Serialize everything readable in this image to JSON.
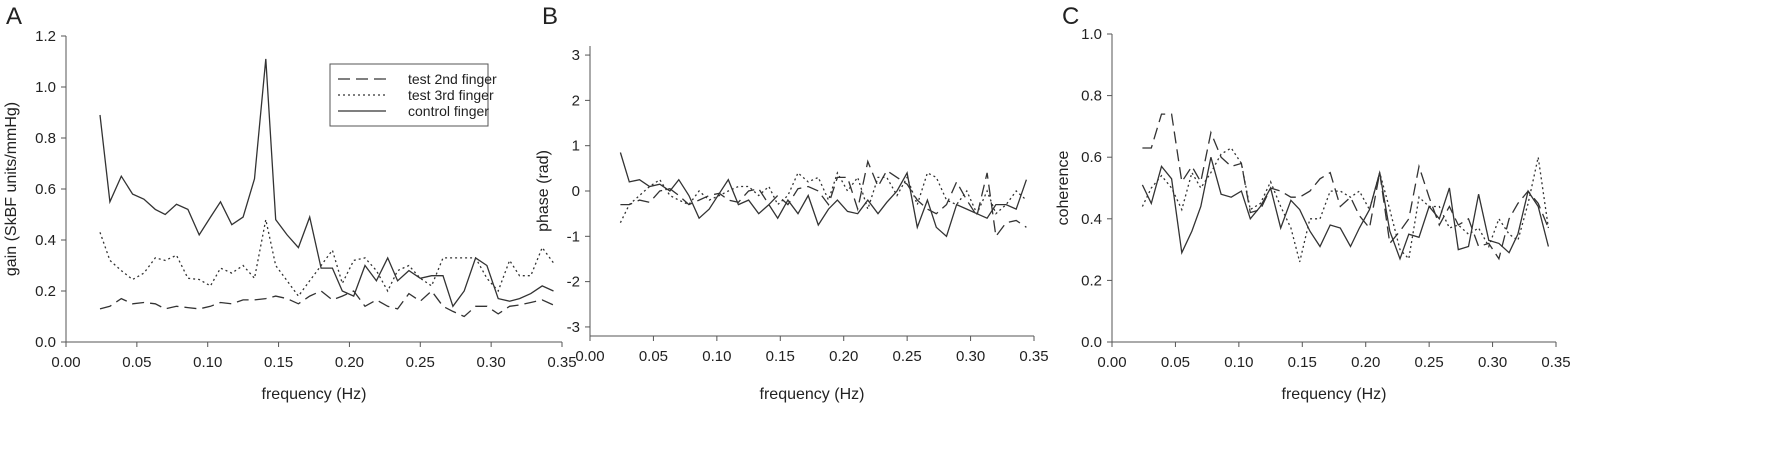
{
  "chart_data": [
    {
      "panel_label": "A",
      "type": "line",
      "xlabel": "frequency (Hz)",
      "ylabel": "gain (SkBF units/mmHg)",
      "xlim": [
        0.0,
        0.35
      ],
      "ylim": [
        0.0,
        1.2
      ],
      "xticks": [
        "0.00",
        "0.05",
        "0.10",
        "0.15",
        "0.20",
        "0.25",
        "0.30",
        "0.35"
      ],
      "yticks": [
        "0.0",
        "0.2",
        "0.4",
        "0.6",
        "0.8",
        "1.0",
        "1.2"
      ],
      "xtick_values": [
        0,
        0.05,
        0.1,
        0.15,
        0.2,
        0.25,
        0.3,
        0.35
      ],
      "ytick_values": [
        0,
        0.2,
        0.4,
        0.6,
        0.8,
        1.0,
        1.2
      ],
      "legend": "top-right",
      "x": [
        0.024,
        0.031,
        0.039,
        0.047,
        0.055,
        0.063,
        0.07,
        0.078,
        0.086,
        0.094,
        0.102,
        0.109,
        0.117,
        0.125,
        0.133,
        0.141,
        0.148,
        0.156,
        0.164,
        0.172,
        0.18,
        0.188,
        0.195,
        0.203,
        0.211,
        0.219,
        0.227,
        0.234,
        0.242,
        0.25,
        0.258,
        0.266,
        0.273,
        0.281,
        0.289,
        0.297,
        0.305,
        0.313,
        0.32,
        0.328,
        0.336,
        0.344
      ],
      "series": [
        {
          "name": "test 2nd finger",
          "dash": "dashed",
          "values": [
            0.13,
            0.14,
            0.17,
            0.15,
            0.155,
            0.15,
            0.13,
            0.14,
            0.135,
            0.13,
            0.14,
            0.155,
            0.15,
            0.165,
            0.165,
            0.17,
            0.18,
            0.17,
            0.15,
            0.18,
            0.2,
            0.165,
            0.18,
            0.2,
            0.14,
            0.165,
            0.14,
            0.13,
            0.19,
            0.16,
            0.2,
            0.14,
            0.12,
            0.1,
            0.14,
            0.14,
            0.11,
            0.14,
            0.145,
            0.155,
            0.165,
            0.145
          ]
        },
        {
          "name": "test 3rd finger",
          "dash": "dotted",
          "values": [
            0.43,
            0.32,
            0.28,
            0.245,
            0.27,
            0.33,
            0.32,
            0.34,
            0.25,
            0.245,
            0.22,
            0.29,
            0.27,
            0.3,
            0.25,
            0.48,
            0.3,
            0.24,
            0.18,
            0.24,
            0.3,
            0.36,
            0.23,
            0.32,
            0.33,
            0.28,
            0.2,
            0.28,
            0.3,
            0.25,
            0.22,
            0.33,
            0.33,
            0.33,
            0.33,
            0.25,
            0.2,
            0.32,
            0.26,
            0.26,
            0.37,
            0.31
          ]
        },
        {
          "name": "control finger",
          "dash": "solid",
          "values": [
            0.89,
            0.55,
            0.65,
            0.58,
            0.56,
            0.52,
            0.5,
            0.54,
            0.52,
            0.42,
            0.49,
            0.55,
            0.46,
            0.49,
            0.64,
            1.11,
            0.48,
            0.42,
            0.37,
            0.49,
            0.29,
            0.29,
            0.2,
            0.18,
            0.3,
            0.24,
            0.33,
            0.24,
            0.28,
            0.25,
            0.26,
            0.26,
            0.14,
            0.2,
            0.33,
            0.3,
            0.17,
            0.16,
            0.17,
            0.19,
            0.22,
            0.2
          ]
        }
      ]
    },
    {
      "panel_label": "B",
      "type": "line",
      "xlabel": "frequency (Hz)",
      "ylabel": "phase (rad)",
      "xlim": [
        0.0,
        0.35
      ],
      "ylim": [
        -3.2,
        3.2
      ],
      "xticks": [
        "0.00",
        "0.05",
        "0.10",
        "0.15",
        "0.20",
        "0.25",
        "0.30",
        "0.35"
      ],
      "yticks": [
        "-3",
        "-2",
        "-1",
        "0",
        "1",
        "2",
        "3"
      ],
      "xtick_values": [
        0,
        0.05,
        0.1,
        0.15,
        0.2,
        0.25,
        0.3,
        0.35
      ],
      "ytick_values": [
        -3,
        -2,
        -1,
        0,
        1,
        2,
        3
      ],
      "x": [
        0.024,
        0.031,
        0.039,
        0.047,
        0.055,
        0.063,
        0.07,
        0.078,
        0.086,
        0.094,
        0.102,
        0.109,
        0.117,
        0.125,
        0.133,
        0.141,
        0.148,
        0.156,
        0.164,
        0.172,
        0.18,
        0.188,
        0.195,
        0.203,
        0.211,
        0.219,
        0.227,
        0.234,
        0.242,
        0.25,
        0.258,
        0.266,
        0.273,
        0.281,
        0.289,
        0.297,
        0.305,
        0.313,
        0.32,
        0.328,
        0.336,
        0.344
      ],
      "series": [
        {
          "name": "test 2nd finger",
          "dash": "dashed",
          "values": [
            -0.3,
            -0.3,
            -0.2,
            -0.25,
            0.0,
            0.05,
            -0.1,
            -0.3,
            -0.2,
            -0.1,
            -0.05,
            -0.2,
            -0.25,
            0.0,
            0.05,
            -0.3,
            -0.1,
            -0.3,
            0.05,
            0.1,
            0.0,
            -0.3,
            0.3,
            0.3,
            -0.4,
            0.65,
            0.1,
            0.45,
            0.3,
            0.15,
            -0.2,
            -0.4,
            -0.5,
            -0.3,
            0.2,
            -0.2,
            -0.55,
            0.4,
            -1.0,
            -0.7,
            -0.65,
            -0.8
          ]
        },
        {
          "name": "test 3rd finger",
          "dash": "dotted",
          "values": [
            -0.7,
            -0.3,
            -0.1,
            0.1,
            0.25,
            -0.1,
            -0.2,
            -0.3,
            0.0,
            -0.2,
            -0.1,
            0.0,
            0.1,
            0.1,
            -0.1,
            0.1,
            -0.3,
            -0.1,
            0.4,
            0.2,
            0.3,
            -0.2,
            0.4,
            0.0,
            0.3,
            -0.4,
            0.3,
            0.3,
            -0.1,
            0.3,
            -0.3,
            0.4,
            0.3,
            -0.2,
            -0.3,
            0.0,
            -0.5,
            0.0,
            -0.5,
            -0.3,
            0.0,
            -0.2
          ]
        },
        {
          "name": "control finger",
          "dash": "solid",
          "values": [
            0.85,
            0.2,
            0.25,
            0.1,
            0.15,
            0.0,
            0.25,
            -0.1,
            -0.6,
            -0.4,
            -0.05,
            0.25,
            -0.3,
            -0.2,
            -0.5,
            -0.3,
            -0.6,
            -0.2,
            -0.5,
            -0.1,
            -0.75,
            -0.4,
            -0.2,
            -0.45,
            -0.5,
            -0.2,
            -0.5,
            -0.25,
            0.0,
            0.4,
            -0.8,
            -0.2,
            -0.8,
            -1.0,
            -0.3,
            -0.4,
            -0.5,
            -0.6,
            -0.3,
            -0.3,
            -0.4,
            0.25
          ]
        }
      ]
    },
    {
      "panel_label": "C",
      "type": "line",
      "xlabel": "frequency (Hz)",
      "ylabel": "coherence",
      "xlim": [
        0.0,
        0.35
      ],
      "ylim": [
        0.0,
        1.0
      ],
      "xticks": [
        "0.00",
        "0.05",
        "0.10",
        "0.15",
        "0.20",
        "0.25",
        "0.30",
        "0.35"
      ],
      "yticks": [
        "0.0",
        "0.2",
        "0.4",
        "0.6",
        "0.8",
        "1.0"
      ],
      "xtick_values": [
        0,
        0.05,
        0.1,
        0.15,
        0.2,
        0.25,
        0.3,
        0.35
      ],
      "ytick_values": [
        0,
        0.2,
        0.4,
        0.6,
        0.8,
        1.0
      ],
      "x": [
        0.024,
        0.031,
        0.039,
        0.047,
        0.055,
        0.063,
        0.07,
        0.078,
        0.086,
        0.094,
        0.102,
        0.109,
        0.117,
        0.125,
        0.133,
        0.141,
        0.148,
        0.156,
        0.164,
        0.172,
        0.18,
        0.188,
        0.195,
        0.203,
        0.211,
        0.219,
        0.227,
        0.234,
        0.242,
        0.25,
        0.258,
        0.266,
        0.273,
        0.281,
        0.289,
        0.297,
        0.305,
        0.313,
        0.32,
        0.328,
        0.336,
        0.344
      ],
      "series": [
        {
          "name": "test 2nd finger",
          "dash": "dashed",
          "values": [
            0.63,
            0.63,
            0.74,
            0.74,
            0.52,
            0.57,
            0.52,
            0.68,
            0.6,
            0.57,
            0.58,
            0.42,
            0.43,
            0.5,
            0.49,
            0.47,
            0.47,
            0.49,
            0.53,
            0.55,
            0.44,
            0.47,
            0.41,
            0.37,
            0.55,
            0.32,
            0.36,
            0.4,
            0.57,
            0.47,
            0.38,
            0.44,
            0.38,
            0.4,
            0.31,
            0.32,
            0.27,
            0.4,
            0.45,
            0.49,
            0.45,
            0.37
          ]
        },
        {
          "name": "test 3rd finger",
          "dash": "dotted",
          "values": [
            0.44,
            0.5,
            0.54,
            0.5,
            0.43,
            0.55,
            0.5,
            0.55,
            0.61,
            0.63,
            0.58,
            0.43,
            0.45,
            0.52,
            0.44,
            0.37,
            0.26,
            0.4,
            0.4,
            0.49,
            0.49,
            0.47,
            0.49,
            0.43,
            0.55,
            0.43,
            0.3,
            0.27,
            0.47,
            0.44,
            0.44,
            0.37,
            0.38,
            0.35,
            0.37,
            0.31,
            0.4,
            0.35,
            0.33,
            0.45,
            0.6,
            0.37
          ]
        },
        {
          "name": "control finger",
          "dash": "solid",
          "values": [
            0.51,
            0.45,
            0.57,
            0.53,
            0.29,
            0.36,
            0.44,
            0.6,
            0.48,
            0.47,
            0.49,
            0.4,
            0.44,
            0.5,
            0.37,
            0.46,
            0.43,
            0.36,
            0.31,
            0.38,
            0.37,
            0.31,
            0.37,
            0.43,
            0.55,
            0.36,
            0.27,
            0.35,
            0.34,
            0.44,
            0.4,
            0.5,
            0.3,
            0.31,
            0.48,
            0.33,
            0.32,
            0.29,
            0.35,
            0.49,
            0.44,
            0.31
          ]
        }
      ]
    }
  ]
}
